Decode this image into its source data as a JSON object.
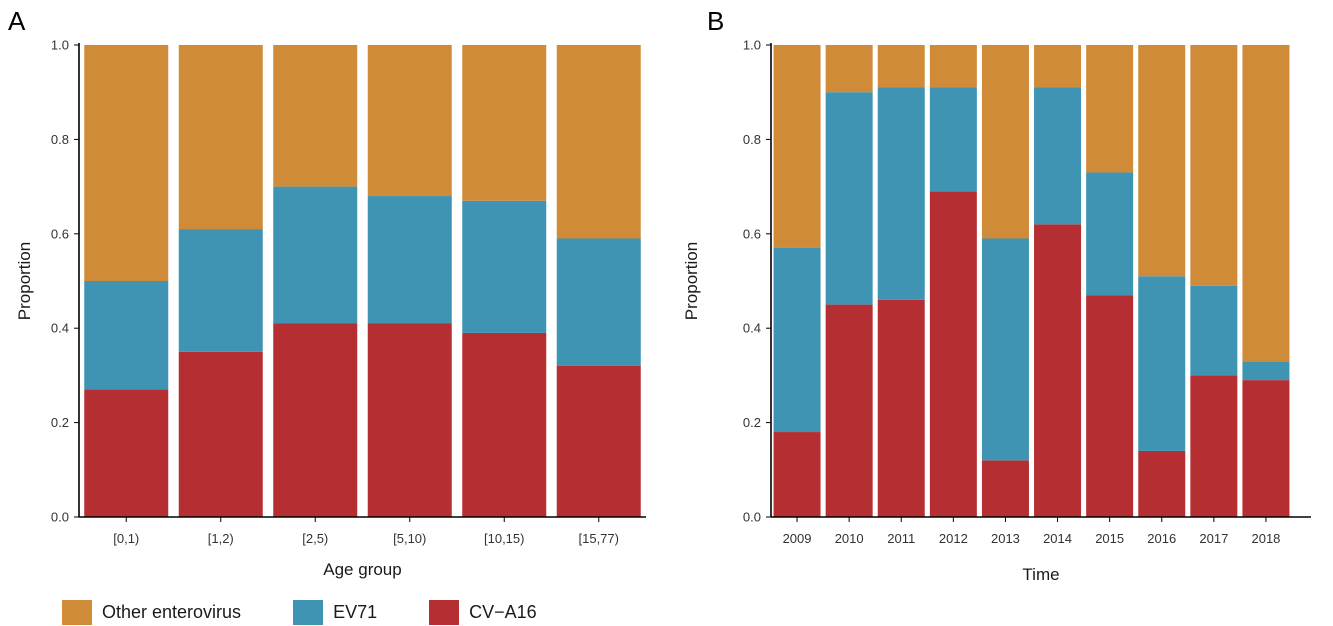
{
  "colors": {
    "other": "#CF8B38",
    "ev71": "#3E94B2",
    "cva16": "#B52E31",
    "axis": "#000000",
    "tick_text": "#333333"
  },
  "legend": {
    "items": [
      {
        "key": "other",
        "label": "Other enterovirus"
      },
      {
        "key": "ev71",
        "label": "EV71"
      },
      {
        "key": "cva16",
        "label": "CV−A16"
      }
    ]
  },
  "chart_data": [
    {
      "panel": "A",
      "type": "bar",
      "stacked": true,
      "xlabel": "Age group",
      "ylabel": "Proportion",
      "ylim": [
        0,
        1
      ],
      "yticks": [
        "0.0",
        "0.2",
        "0.4",
        "0.6",
        "0.8",
        "1.0"
      ],
      "grid": false,
      "categories": [
        "[0,1)",
        "[1,2)",
        "[2,5)",
        "[5,10)",
        "[10,15)",
        "[15,77)"
      ],
      "series": [
        {
          "name": "CV−A16",
          "key": "cva16",
          "values": [
            0.27,
            0.35,
            0.41,
            0.41,
            0.39,
            0.32
          ]
        },
        {
          "name": "EV71",
          "key": "ev71",
          "values": [
            0.23,
            0.26,
            0.29,
            0.27,
            0.28,
            0.27
          ]
        },
        {
          "name": "Other enterovirus",
          "key": "other",
          "values": [
            0.5,
            0.39,
            0.3,
            0.32,
            0.33,
            0.41
          ]
        }
      ]
    },
    {
      "panel": "B",
      "type": "bar",
      "stacked": true,
      "xlabel": "Time",
      "ylabel": "Proportion",
      "ylim": [
        0,
        1
      ],
      "yticks": [
        "0.0",
        "0.2",
        "0.4",
        "0.6",
        "0.8",
        "1.0"
      ],
      "grid": false,
      "categories": [
        "2009",
        "2010",
        "2011",
        "2012",
        "2013",
        "2014",
        "2015",
        "2016",
        "2017",
        "2018"
      ],
      "series": [
        {
          "name": "CV−A16",
          "key": "cva16",
          "values": [
            0.18,
            0.45,
            0.46,
            0.69,
            0.12,
            0.62,
            0.47,
            0.14,
            0.3,
            0.29
          ]
        },
        {
          "name": "EV71",
          "key": "ev71",
          "values": [
            0.39,
            0.45,
            0.45,
            0.22,
            0.47,
            0.29,
            0.26,
            0.37,
            0.19,
            0.04
          ]
        },
        {
          "name": "Other enterovirus",
          "key": "other",
          "values": [
            0.43,
            0.1,
            0.09,
            0.09,
            0.41,
            0.09,
            0.27,
            0.49,
            0.51,
            0.67
          ]
        }
      ]
    }
  ]
}
